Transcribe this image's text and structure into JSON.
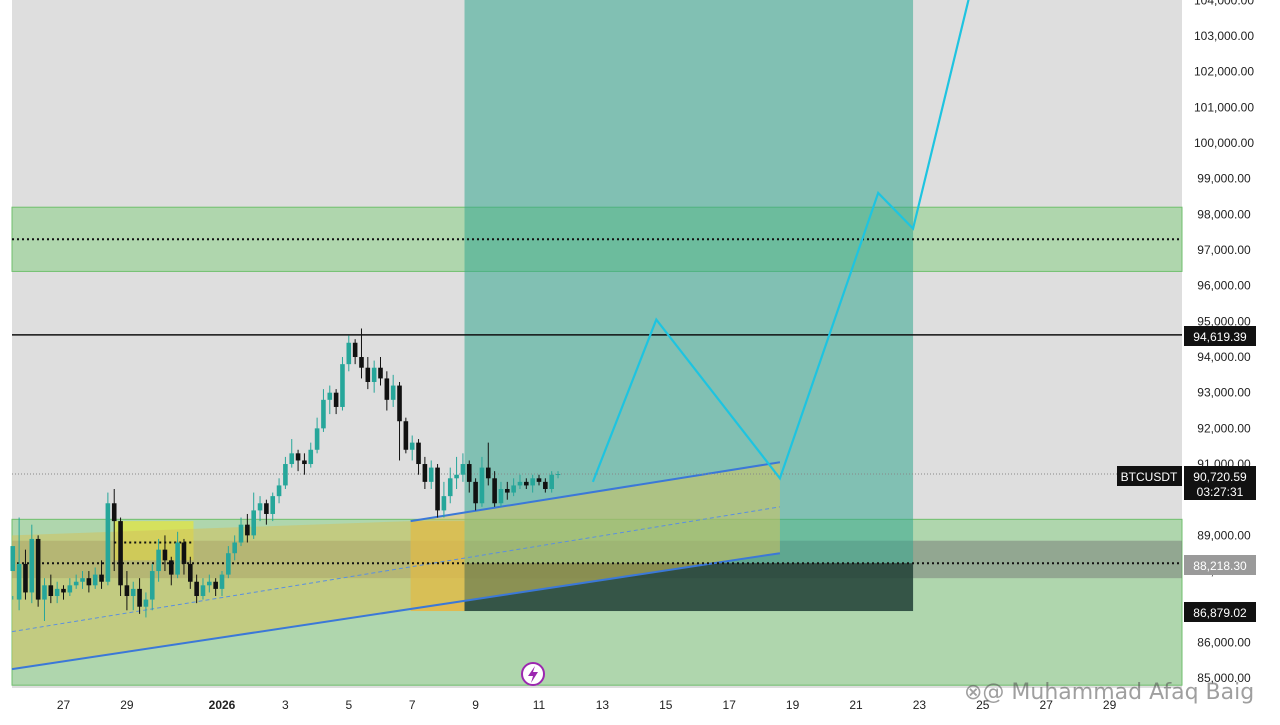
{
  "chart_data": {
    "type": "candlestick",
    "symbol": "BTCUSDT",
    "y_axis": {
      "range": [
        84800,
        104100
      ],
      "tick_labels": [
        "104,000.00",
        "103,000.00",
        "102,000.00",
        "101,000.00",
        "100,000.00",
        "99,000.00",
        "98,000.00",
        "97,000.00",
        "96,000.00",
        "95,000.00",
        "94,000.00",
        "93,000.00",
        "92,000.00",
        "91,000.00",
        "89,000.00",
        "88,000.00",
        "86,000.00",
        "85,000.00"
      ],
      "tick_values": [
        104000,
        103000,
        102000,
        101000,
        100000,
        99000,
        98000,
        97000,
        96000,
        95000,
        94000,
        93000,
        92000,
        91000,
        89000,
        88000,
        86000,
        85000
      ]
    },
    "x_axis": {
      "tick_labels": [
        "27",
        "29",
        "2026",
        "3",
        "5",
        "7",
        "9",
        "11",
        "13",
        "15",
        "17",
        "19",
        "21",
        "23",
        "25",
        "27",
        "29"
      ],
      "tick_days": [
        -5,
        -3,
        0,
        2,
        4,
        6,
        8,
        10,
        12,
        14,
        16,
        18,
        20,
        22,
        24,
        26,
        28
      ]
    },
    "price_tags": {
      "current": {
        "symbol": "BTCUSDT",
        "price": "90,720.59",
        "countdown": "03:27:31",
        "value": 90720.59
      },
      "resistance": {
        "price": "94,619.39",
        "value": 94619.39
      },
      "mid": {
        "price": "88,218.30",
        "value": 88218.3
      },
      "stop": {
        "price": "86,879.02",
        "value": 86879.02
      }
    },
    "candles": [
      [
        -6.6,
        88000,
        88700,
        87300,
        87200
      ],
      [
        -6.4,
        87200,
        88200,
        89500,
        86900
      ],
      [
        -6.2,
        88200,
        87400,
        88600,
        87200
      ],
      [
        -6.0,
        87400,
        88900,
        89300,
        87100
      ],
      [
        -5.8,
        88900,
        87200,
        89000,
        87000
      ],
      [
        -5.6,
        87200,
        87600,
        87800,
        86600
      ],
      [
        -5.4,
        87600,
        87300,
        87900,
        87100
      ],
      [
        -5.2,
        87300,
        87500,
        87700,
        87100
      ],
      [
        -5.0,
        87500,
        87400,
        87600,
        87200
      ],
      [
        -4.8,
        87400,
        87600,
        87800,
        87300
      ],
      [
        -4.6,
        87600,
        87700,
        87900,
        87500
      ],
      [
        -4.4,
        87700,
        87800,
        88000,
        87500
      ],
      [
        -4.2,
        87800,
        87600,
        88000,
        87400
      ],
      [
        -4.0,
        87600,
        87900,
        88100,
        87500
      ],
      [
        -3.8,
        87900,
        87700,
        88300,
        87500
      ],
      [
        -3.6,
        87700,
        89900,
        90200,
        87600
      ],
      [
        -3.4,
        89900,
        89400,
        90300,
        88000
      ],
      [
        -3.2,
        89400,
        87600,
        89500,
        87300
      ],
      [
        -3.0,
        87600,
        87300,
        88000,
        86900
      ],
      [
        -2.8,
        87300,
        87500,
        87700,
        86900
      ],
      [
        -2.6,
        87500,
        87000,
        87800,
        86800
      ],
      [
        -2.4,
        87000,
        87200,
        87400,
        86700
      ],
      [
        -2.2,
        87200,
        88000,
        88200,
        86900
      ],
      [
        -2.0,
        88000,
        88600,
        88900,
        87700
      ],
      [
        -1.8,
        88600,
        88300,
        89000,
        88000
      ],
      [
        -1.6,
        88300,
        87900,
        88400,
        87600
      ],
      [
        -1.4,
        87900,
        88800,
        89100,
        87800
      ],
      [
        -1.2,
        88800,
        88200,
        88900,
        87900
      ],
      [
        -1.0,
        88200,
        87700,
        88400,
        87500
      ],
      [
        -0.8,
        87700,
        87300,
        87900,
        87100
      ],
      [
        -0.6,
        87300,
        87600,
        87800,
        87200
      ],
      [
        -0.4,
        87600,
        87700,
        87900,
        87400
      ],
      [
        -0.2,
        87700,
        87500,
        87800,
        87300
      ],
      [
        0.0,
        87500,
        87900,
        88000,
        87300
      ],
      [
        0.2,
        87900,
        88500,
        88700,
        87800
      ],
      [
        0.4,
        88500,
        88800,
        89000,
        88300
      ],
      [
        0.6,
        88800,
        89300,
        89500,
        88700
      ],
      [
        0.8,
        89300,
        89000,
        89600,
        88800
      ],
      [
        1.0,
        89000,
        89700,
        90200,
        88900
      ],
      [
        1.2,
        89700,
        89900,
        90100,
        89400
      ],
      [
        1.4,
        89900,
        89600,
        90000,
        89300
      ],
      [
        1.6,
        89600,
        90100,
        90200,
        89400
      ],
      [
        1.8,
        90100,
        90400,
        90600,
        89900
      ],
      [
        2.0,
        90400,
        91000,
        91200,
        90300
      ],
      [
        2.2,
        91000,
        91300,
        91700,
        90900
      ],
      [
        2.4,
        91300,
        91100,
        91400,
        90800
      ],
      [
        2.6,
        91100,
        91000,
        91300,
        90700
      ],
      [
        2.8,
        91000,
        91400,
        91600,
        90900
      ],
      [
        3.0,
        91400,
        92000,
        92300,
        91300
      ],
      [
        3.2,
        92000,
        92800,
        93100,
        91900
      ],
      [
        3.4,
        92800,
        93000,
        93200,
        92400
      ],
      [
        3.6,
        93000,
        92600,
        93100,
        92400
      ],
      [
        3.8,
        92600,
        93800,
        94000,
        92500
      ],
      [
        4.0,
        93800,
        94400,
        94600,
        93600
      ],
      [
        4.2,
        94400,
        94000,
        94500,
        93800
      ],
      [
        4.4,
        94000,
        93700,
        94800,
        93400
      ],
      [
        4.6,
        93700,
        93300,
        94000,
        93100
      ],
      [
        4.8,
        93300,
        93700,
        93900,
        93000
      ],
      [
        5.0,
        93700,
        93400,
        94000,
        93200
      ],
      [
        5.2,
        93400,
        92800,
        93600,
        92500
      ],
      [
        5.4,
        92800,
        93200,
        93500,
        92600
      ],
      [
        5.6,
        93200,
        92200,
        93300,
        91100
      ],
      [
        5.8,
        92200,
        91400,
        92300,
        91300
      ],
      [
        6.0,
        91400,
        91600,
        91800,
        91100
      ],
      [
        6.2,
        91600,
        91000,
        91700,
        90700
      ],
      [
        6.4,
        91000,
        90500,
        91200,
        90300
      ],
      [
        6.6,
        90500,
        90900,
        91100,
        90300
      ],
      [
        6.8,
        90900,
        89700,
        91000,
        89500
      ],
      [
        7.0,
        89700,
        90100,
        90500,
        89500
      ],
      [
        7.2,
        90100,
        90600,
        90900,
        89900
      ],
      [
        7.4,
        90600,
        90700,
        91200,
        90300
      ],
      [
        7.6,
        90700,
        91000,
        91300,
        90500
      ],
      [
        7.8,
        91000,
        90500,
        91100,
        90200
      ],
      [
        8.0,
        90500,
        89900,
        90600,
        89700
      ],
      [
        8.2,
        89900,
        90900,
        91200,
        89800
      ],
      [
        8.4,
        90900,
        90600,
        91600,
        90400
      ],
      [
        8.6,
        90600,
        89900,
        90800,
        89800
      ],
      [
        8.8,
        89900,
        90300,
        90500,
        89800
      ],
      [
        9.0,
        90300,
        90200,
        90500,
        90000
      ],
      [
        9.2,
        90200,
        90400,
        90600,
        90100
      ],
      [
        9.4,
        90400,
        90500,
        90700,
        90300
      ],
      [
        9.6,
        90500,
        90400,
        90600,
        90300
      ],
      [
        9.8,
        90400,
        90600,
        90700,
        90200
      ],
      [
        10.0,
        90600,
        90500,
        90700,
        90400
      ],
      [
        10.2,
        90500,
        90300,
        90600,
        90200
      ],
      [
        10.4,
        90300,
        90700,
        90800,
        90200
      ],
      [
        10.6,
        90700,
        90720,
        90800,
        90600
      ]
    ],
    "zones": [
      {
        "kind": "supply",
        "y_range": [
          96400,
          98200
        ],
        "x_range": [
          -7,
          50
        ]
      },
      {
        "kind": "demand",
        "y_range": [
          84800,
          89450
        ],
        "x_range": [
          -7,
          50
        ]
      },
      {
        "kind": "gray",
        "y_range": [
          87800,
          88850
        ],
        "x_range": [
          -7,
          50
        ]
      },
      {
        "kind": "yellow-box",
        "y_range": [
          88300,
          89400
        ],
        "x_range": [
          -3.4,
          -0.9
        ]
      },
      {
        "kind": "target",
        "y_range": [
          86879.02,
          104100
        ],
        "x_range": [
          7.65,
          21.8
        ]
      },
      {
        "kind": "stop",
        "y_range": [
          86879.02,
          88218.3
        ],
        "x_range": [
          7.65,
          21.8
        ]
      },
      {
        "kind": "orange",
        "y_range": [
          86879.02,
          89400
        ],
        "x_range": [
          5.95,
          7.65
        ]
      }
    ],
    "lines": {
      "resistance_level": 94619.39,
      "dotted_supply": 97300,
      "dotted_mid": 88218.3,
      "dotted_small": 88800,
      "current_price": 90720.59
    },
    "channel": {
      "upper": [
        [
          5.95,
          89400
        ],
        [
          17.6,
          91050
        ]
      ],
      "lower": [
        [
          -7,
          85250
        ],
        [
          17.6,
          88500
        ]
      ],
      "mid": [
        [
          -7,
          86300
        ],
        [
          17.6,
          89800
        ]
      ]
    },
    "projection": [
      [
        11.7,
        90500
      ],
      [
        13.7,
        95050
      ],
      [
        17.6,
        90600
      ],
      [
        20.7,
        98600
      ],
      [
        21.8,
        97600
      ],
      [
        23.6,
        104200
      ]
    ]
  },
  "watermark": "⊗@ Muhammad Afaq Baig",
  "icons": {
    "flash": "lightning-bolt-icon"
  }
}
